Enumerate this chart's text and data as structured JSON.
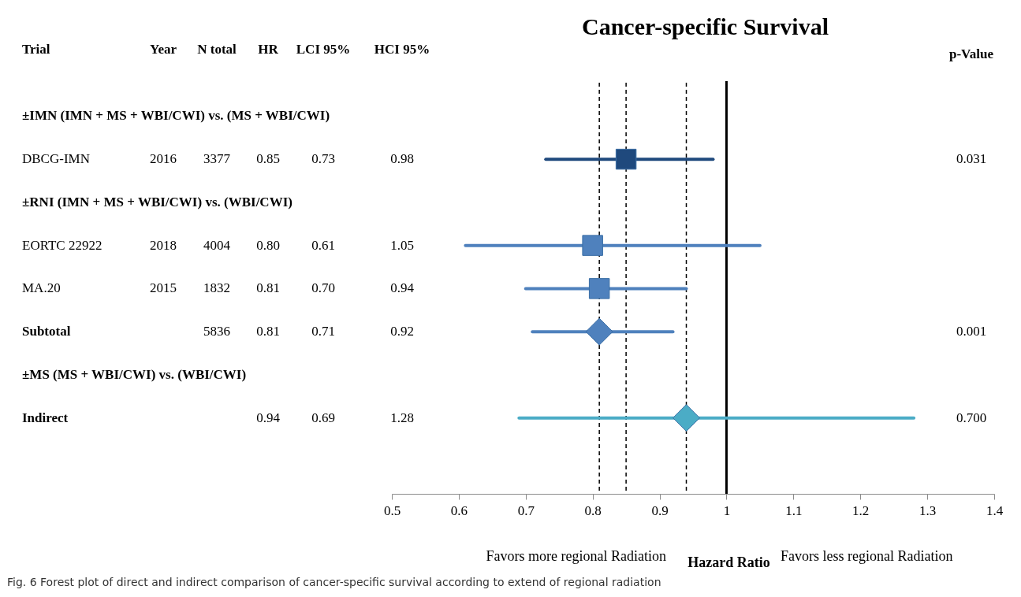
{
  "chart_data": {
    "type": "scatter",
    "orientation": "horizontal",
    "title": "Cancer-specific Survival",
    "xlabel": "Hazard Ratio",
    "categories": [
      "±IMN (IMN + MS + WBI/CWI) vs. (MS + WBI/CWI)",
      "DBCG-IMN",
      "±RNI (IMN + MS + WBI/CWI) vs. (WBI/CWI)",
      "EORTC 22922",
      "MA.20",
      "Subtotal",
      "±MS (MS + WBI/CWI) vs. (WBI/CWI)",
      "Indirect"
    ],
    "series": [
      {
        "marker": "square",
        "color": "#1f497d",
        "values": [
          null,
          0.85,
          null,
          null,
          null,
          null,
          null,
          null
        ],
        "errors": [
          null,
          [
            0.73,
            0.98
          ],
          null,
          null,
          null,
          null,
          null,
          null
        ]
      },
      {
        "marker": "square",
        "color": "#4f81bd",
        "values": [
          null,
          null,
          null,
          0.8,
          0.81,
          null,
          null,
          null
        ],
        "errors": [
          null,
          null,
          null,
          [
            0.61,
            1.05
          ],
          [
            0.7,
            0.94
          ],
          null,
          null,
          null
        ]
      },
      {
        "marker": "diamond",
        "color": "#4f81bd",
        "values": [
          null,
          null,
          null,
          null,
          null,
          0.81,
          null,
          null
        ],
        "errors": [
          null,
          null,
          null,
          null,
          null,
          [
            0.71,
            0.92
          ],
          null,
          null
        ]
      },
      {
        "marker": "diamond",
        "color": "#4bacc6",
        "values": [
          null,
          null,
          null,
          null,
          null,
          null,
          null,
          0.94
        ],
        "errors": [
          null,
          null,
          null,
          null,
          null,
          null,
          null,
          [
            0.69,
            1.28
          ]
        ]
      }
    ],
    "xlim": [
      0.5,
      1.4
    ],
    "xticks": [
      0.5,
      0.6,
      0.7,
      0.8,
      0.9,
      {
        "value": 1,
        "label": "1"
      },
      1.1,
      1.2,
      1.3,
      1.4
    ],
    "grid": false,
    "ref_lines": [
      {
        "axis": "x",
        "value": 1,
        "color": "#000000",
        "line_style": "solid"
      },
      {
        "axis": "x",
        "value": 0.81,
        "color": "#000000",
        "line_style": "dashed"
      },
      {
        "axis": "x",
        "value": 0.85,
        "color": "#000000",
        "line_style": "dashed"
      },
      {
        "axis": "x",
        "value": 0.94,
        "color": "#000000",
        "line_style": "dashed"
      }
    ],
    "annotations": [
      "Trial",
      "Year",
      "N total",
      "HR",
      "LCI 95%",
      "HCI 95%",
      "p-Value",
      "Favors more regional Radiation",
      "Favors less regional Radiation",
      "Fig. 6 Forest plot of direct and indirect comparison of cancer-specific survival according to extend of regional radiation",
      "2016",
      "3377",
      "0.85",
      "0.73",
      "0.98",
      "0.031",
      "2018",
      "4004",
      "0.80",
      "0.61",
      "1.05",
      "2015",
      "1832",
      "0.81",
      "0.70",
      "0.94",
      "5836",
      "0.81",
      "0.71",
      "0.92",
      "0.001",
      "0.94",
      "0.69",
      "1.28",
      "0.700"
    ]
  }
}
